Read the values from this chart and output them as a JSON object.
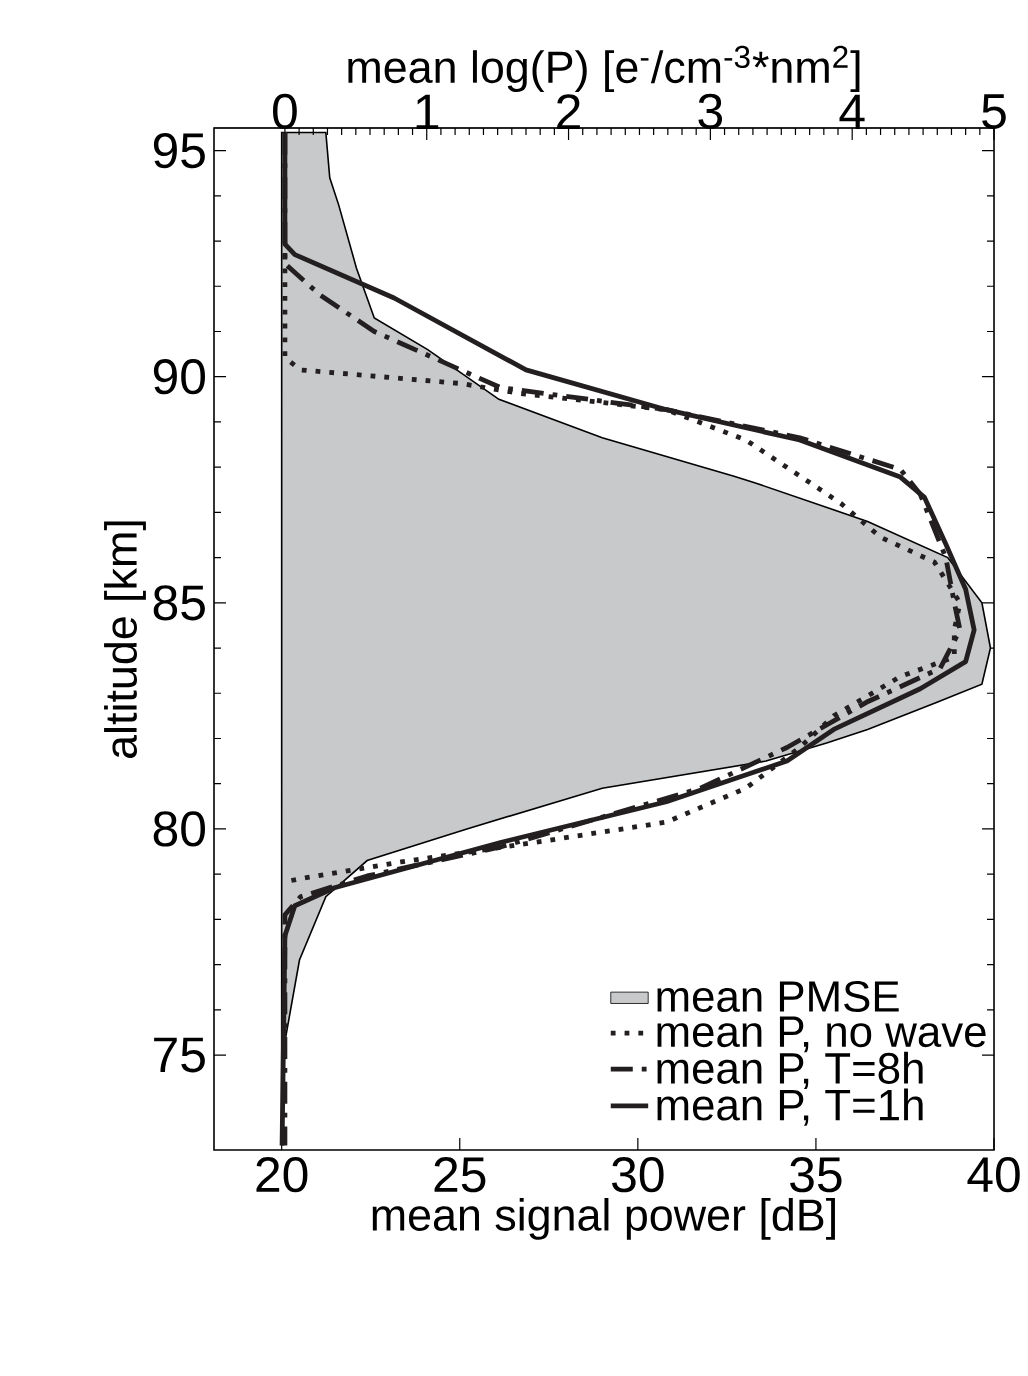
{
  "chart_data": {
    "type": "line",
    "xlabel": "mean signal power [dB]",
    "x2label": "mean log(P) [e$^{-}$/cm$^{-3}$*nm$^{2}$]",
    "ylabel": "altitude [km]",
    "xlim": [
      18.1,
      40
    ],
    "xticks": [
      20,
      25,
      30,
      35,
      40
    ],
    "x2lim": [
      -0.5,
      5
    ],
    "x2ticks": [
      0,
      1,
      2,
      3,
      4,
      5
    ],
    "ylim": [
      72.9,
      95.5
    ],
    "yticks": [
      75,
      80,
      85,
      90,
      95
    ],
    "legend": "bottom right",
    "series": [
      {
        "name": "mean PMSE",
        "type": "area",
        "color": "#c8c9cb",
        "x": [
          20,
          21.24,
          21.35,
          21.6,
          22.1,
          22.6,
          24.1,
          26.1,
          29.0,
          32.7,
          33.3,
          36.45,
          38.7,
          39.66,
          39.9,
          39.66,
          38.4,
          36.45,
          35.3,
          33.6,
          29.0,
          25.2,
          22.4,
          21.24,
          20.5,
          20,
          20
        ],
        "values": [
          95.4,
          95.4,
          94.4,
          93.8,
          92.4,
          91.3,
          90.6,
          89.5,
          88.65,
          87.8,
          87.65,
          86.8,
          86.0,
          85.0,
          84.0,
          83.2,
          82.8,
          82.2,
          81.9,
          81.5,
          80.9,
          80.0,
          79.3,
          78.5,
          77.1,
          74.9,
          73
        ]
      },
      {
        "name": "mean P, no wave",
        "axis": "x2",
        "color": "#231f20",
        "line_style": "dotted",
        "x": [
          0,
          0,
          0.11,
          1.24,
          1.66,
          2.69,
          3.25,
          3.92,
          4.2,
          4.58,
          4.76,
          4.72,
          4.72,
          4.34,
          3.87,
          3.63,
          3.25,
          2.69,
          1.76,
          0.82,
          0.11,
          0
        ],
        "values": [
          92.7,
          90.42,
          90.15,
          89.85,
          89.63,
          89.27,
          88.6,
          87.2,
          86.45,
          85.9,
          85.0,
          84.4,
          83.8,
          83.37,
          82.5,
          81.8,
          80.9,
          80.15,
          79.7,
          79.27,
          78.9,
          78.83
        ]
      },
      {
        "name": "mean P, T=8h",
        "axis": "x2",
        "color": "#231f20",
        "line_style": "dashdot",
        "x": [
          0,
          0,
          0.25,
          0.63,
          1.52,
          2.69,
          3.63,
          4.34,
          4.48,
          4.66,
          4.72,
          4.76,
          4.62,
          4.1,
          3.54,
          2.93,
          1.52,
          0.58,
          0.11,
          0,
          0
        ],
        "values": [
          95.4,
          92.5,
          91.8,
          91.0,
          89.76,
          89.27,
          88.65,
          87.95,
          87.4,
          86.0,
          85.0,
          84.4,
          83.55,
          82.8,
          81.8,
          80.9,
          79.6,
          78.96,
          78.5,
          78.1,
          73
        ]
      },
      {
        "name": "mean P, T=1h",
        "axis": "x2",
        "color": "#231f20",
        "line_style": "solid",
        "x": [
          0,
          0,
          0.07,
          0.77,
          1.7,
          2.69,
          3.63,
          4.34,
          4.51,
          4.66,
          4.8,
          4.86,
          4.8,
          4.48,
          3.87,
          3.54,
          2.69,
          1.52,
          0.35,
          0.07,
          0,
          -0.02
        ],
        "values": [
          95.4,
          92.93,
          92.7,
          91.74,
          90.15,
          89.27,
          88.6,
          87.78,
          87.33,
          86.3,
          85.3,
          84.4,
          83.7,
          83.1,
          82.2,
          81.5,
          80.6,
          79.7,
          78.7,
          78.3,
          77.64,
          73
        ]
      }
    ]
  }
}
